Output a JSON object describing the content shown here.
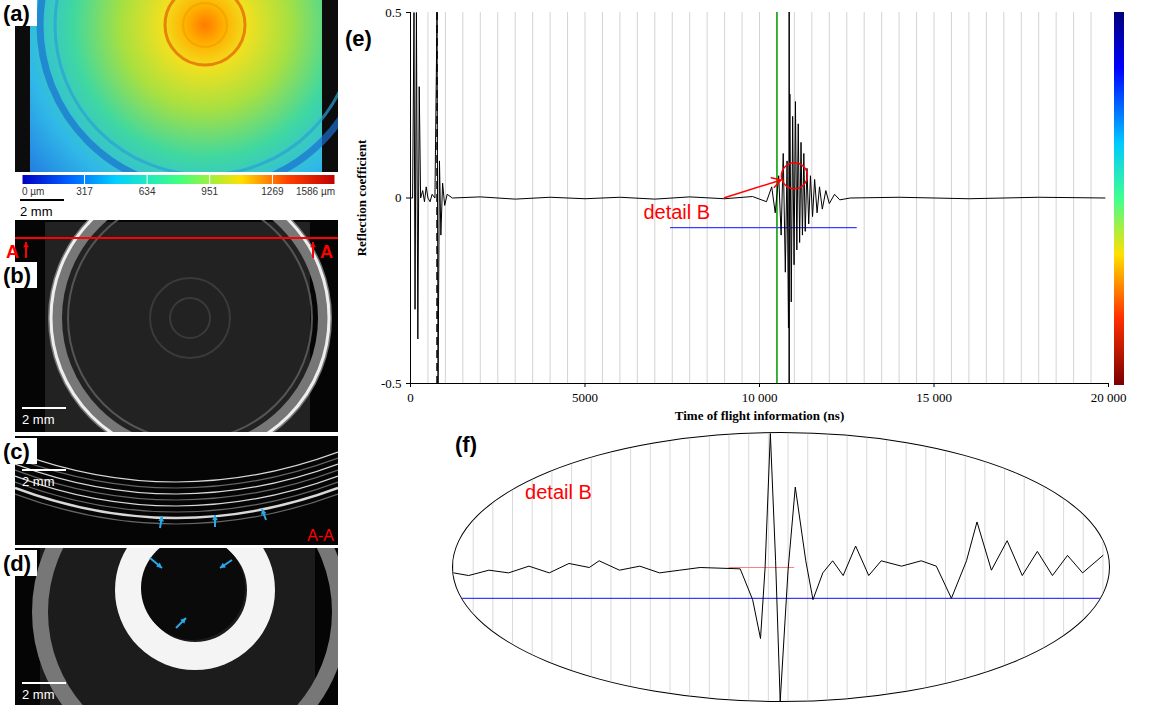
{
  "image_panels": [
    {
      "label": "(a)",
      "scale_bar": "2 mm",
      "colorbar": {
        "range": [
          0,
          1586
        ],
        "ticks": [
          {
            "value": 0,
            "label": "0 µm"
          },
          317,
          634,
          951,
          1269,
          {
            "value": 1586,
            "label": "1586 µm"
          }
        ]
      }
    },
    {
      "label": "(b)",
      "scale_bar": "2 mm",
      "section_marks": [
        "A",
        "A"
      ]
    },
    {
      "label": "(c)",
      "scale_bar": "2 mm",
      "section_label": "A-A"
    },
    {
      "label": "(d)",
      "scale_bar": "2 mm"
    }
  ],
  "chart_data": [
    {
      "type": "line",
      "panel_label": "(e)",
      "x_label": "Time of flight information (ns)",
      "y_label": "Reflection coefficient",
      "xlim": [
        0,
        20000
      ],
      "xticks": [
        0,
        5000,
        {
          "value": 10000,
          "label": "10 000"
        },
        {
          "value": 15000,
          "label": "15 000"
        },
        {
          "value": 20000,
          "label": "20 000"
        }
      ],
      "ylim": [
        -0.5,
        0.5
      ],
      "yticks": [
        -0.5,
        0,
        0.5
      ],
      "color": "#000000",
      "x": [
        0,
        60,
        100,
        130,
        170,
        210,
        250,
        290,
        350,
        400,
        450,
        500,
        560,
        620,
        700,
        760,
        790,
        830,
        870,
        920,
        980,
        1050,
        1200,
        2000,
        3000,
        4000,
        5000,
        6000,
        7000,
        8000,
        9000,
        9800,
        10200,
        10350,
        10450,
        10550,
        10620,
        10680,
        10740,
        10790,
        10830,
        10870,
        10910,
        10950,
        10990,
        11030,
        11070,
        11110,
        11150,
        11190,
        11230,
        11270,
        11310,
        11360,
        11410,
        11460,
        11520,
        11580,
        11650,
        11720,
        11800,
        11900,
        12000,
        12150,
        12300,
        12600,
        14000,
        16000,
        18000,
        19900
      ],
      "values": [
        0,
        0,
        0.5,
        -0.3,
        0.5,
        -0.38,
        0.3,
        0,
        0.02,
        -0.01,
        0.03,
        0,
        -0.01,
        0.01,
        0,
        0.5,
        -0.5,
        0.1,
        -0.1,
        0.04,
        -0.02,
        0.01,
        0,
        0.003,
        -0.003,
        0.002,
        -0.002,
        0.002,
        -0.003,
        0.003,
        -0.002,
        0.004,
        -0.01,
        0.03,
        -0.04,
        0.06,
        -0.1,
        0.12,
        -0.2,
        0.1,
        -0.35,
        0.28,
        -0.28,
        0.22,
        -0.18,
        0.26,
        -0.14,
        0.2,
        -0.12,
        0.15,
        -0.1,
        0.12,
        -0.09,
        0.08,
        -0.07,
        0.06,
        -0.05,
        0.05,
        -0.04,
        0.03,
        -0.03,
        0.02,
        -0.015,
        0.01,
        -0.005,
        0,
        0.002,
        -0.002,
        0.002,
        0
      ],
      "vertical_lines": [
        500,
        1000,
        1500,
        2000,
        2500,
        3000,
        3500,
        4000,
        4500,
        5000,
        5500,
        6000,
        6500,
        7000,
        7500,
        8000,
        8500,
        9000,
        9500,
        10000,
        10500,
        11000,
        11500,
        12000,
        12500,
        13000,
        13500,
        14000,
        14500,
        15000,
        15500,
        16000,
        16500,
        17000,
        17500,
        18000,
        18500,
        19000,
        19500
      ],
      "vertical_markers": [
        {
          "x": 760,
          "color": "#000000",
          "line_style": "dashed"
        },
        {
          "x": 10500,
          "color": "#00a000",
          "line_style": "solid"
        },
        {
          "x": 10850,
          "color": "#000000",
          "line_style": "solid"
        }
      ],
      "gate": {
        "x": [
          7450,
          12800
        ],
        "y": -0.08,
        "color": "#3c3cff"
      },
      "highlight": {
        "x": 11000,
        "y": 0.06,
        "color": "#ff0000"
      },
      "annotations": [
        {
          "text": "detail B",
          "x": 7630,
          "y": -0.04,
          "color": "#ff0000",
          "arrow_to": [
            11000,
            0.06
          ]
        }
      ]
    },
    {
      "type": "line",
      "panel_label": "(f)",
      "tick_labels": false,
      "xlim": [
        0,
        100
      ],
      "ylim": [
        -1,
        1
      ],
      "color": "#000000",
      "x": [
        0,
        2.3,
        5.4,
        8.4,
        11.5,
        14.6,
        17.6,
        20.7,
        22.2,
        25.3,
        28.4,
        31.4,
        34.5,
        37.6,
        43.7,
        45.6,
        46.8,
        47.5,
        48.3,
        49.1,
        49.8,
        51,
        52.1,
        53.7,
        54.8,
        56.3,
        57.8,
        59.4,
        61.3,
        63.3,
        65.2,
        68.3,
        71.3,
        73.6,
        75.9,
        78.2,
        79.8,
        82,
        84.4,
        86.7,
        89,
        91.3,
        93.6,
        95.9,
        99
      ],
      "values": [
        -0.04,
        -0.06,
        -0.02,
        -0.04,
        0.01,
        -0.04,
        0.03,
        0,
        0.05,
        -0.02,
        0.01,
        -0.04,
        -0.02,
        0,
        -0.01,
        -0.24,
        -0.53,
        0,
        1,
        0.05,
        -1,
        -0.02,
        0.6,
        0.05,
        -0.24,
        -0.04,
        0.05,
        -0.06,
        0.16,
        -0.06,
        0.05,
        0.01,
        0.05,
        0.01,
        -0.23,
        0.05,
        0.34,
        -0.02,
        0.2,
        -0.06,
        0.12,
        -0.06,
        0.09,
        -0.04,
        0.09
      ],
      "vertical_lines": [
        0,
        3,
        6,
        9,
        12,
        15,
        18,
        21,
        24,
        27,
        30,
        33,
        36,
        39,
        42,
        45,
        48,
        51,
        54,
        57,
        60,
        63,
        66,
        69,
        72,
        75,
        78,
        81,
        84,
        87,
        90,
        93,
        96,
        99
      ],
      "gate": {
        "x": [
          0,
          100
        ],
        "y": -0.23,
        "color": "#3c3cff"
      },
      "reference": {
        "x": [
          42,
          52
        ],
        "y": 0,
        "color": "#ff8080"
      },
      "annotations": [
        {
          "text": "detail B",
          "x": 16,
          "y": 0.56,
          "color": "#ff0000"
        }
      ]
    }
  ]
}
